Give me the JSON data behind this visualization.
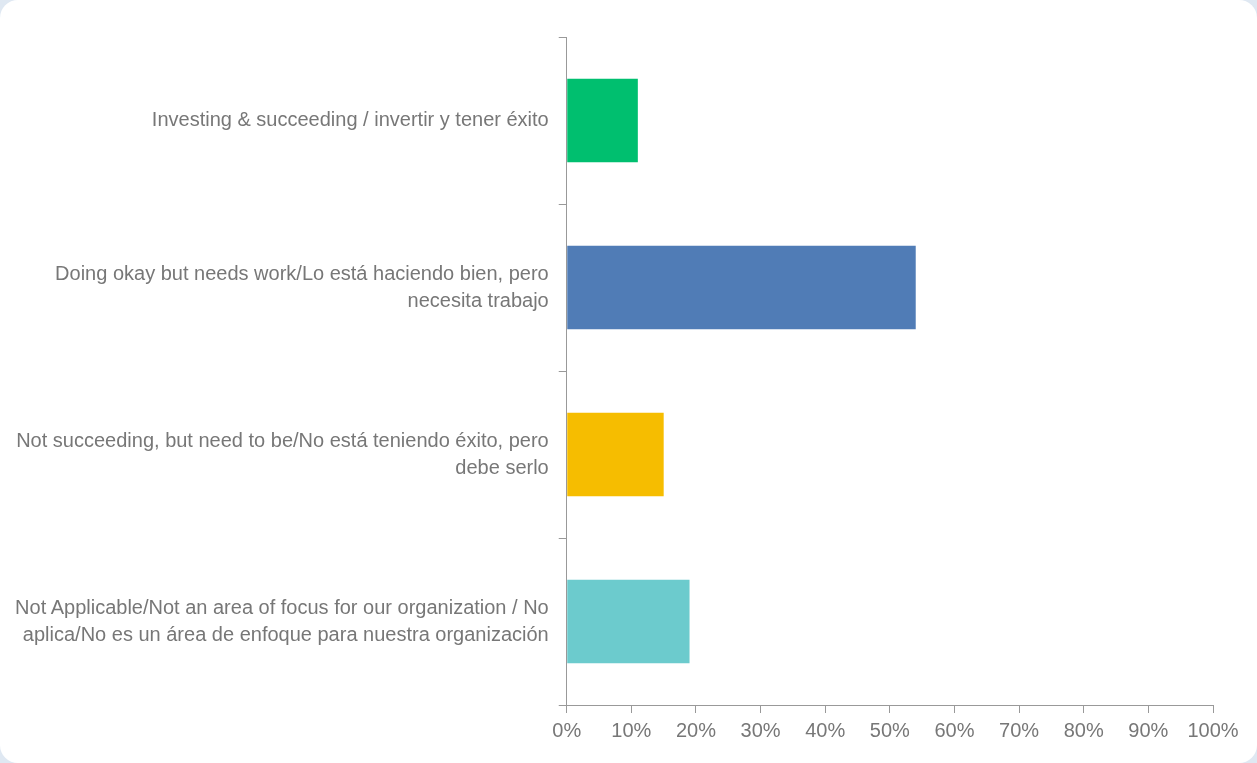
{
  "chart_data": {
    "type": "bar",
    "orientation": "horizontal",
    "categories": [
      "Investing & succeeding / invertir y tener éxito",
      "Doing okay but needs work/Lo está haciendo bien, pero necesita trabajo",
      "Not succeeding, but need to be/No está teniendo éxito, pero debe serlo",
      "Not Applicable/Not an area of focus for our organization / No aplica/No es un área de enfoque para nuestra organización"
    ],
    "values": [
      11,
      54,
      15,
      19
    ],
    "colors": [
      "#00bf6f",
      "#507cb6",
      "#f6bd00",
      "#6ccbcd"
    ],
    "xlim": [
      0,
      100
    ],
    "xticks": [
      {
        "value": 0,
        "label": "0%"
      },
      {
        "value": 10,
        "label": "10%"
      },
      {
        "value": 20,
        "label": "20%"
      },
      {
        "value": 30,
        "label": "30%"
      },
      {
        "value": 40,
        "label": "40%"
      },
      {
        "value": 50,
        "label": "50%"
      },
      {
        "value": 60,
        "label": "60%"
      },
      {
        "value": 70,
        "label": "70%"
      },
      {
        "value": 80,
        "label": "80%"
      },
      {
        "value": 90,
        "label": "90%"
      },
      {
        "value": 100,
        "label": "100%"
      }
    ],
    "grid": false,
    "legend": false
  }
}
